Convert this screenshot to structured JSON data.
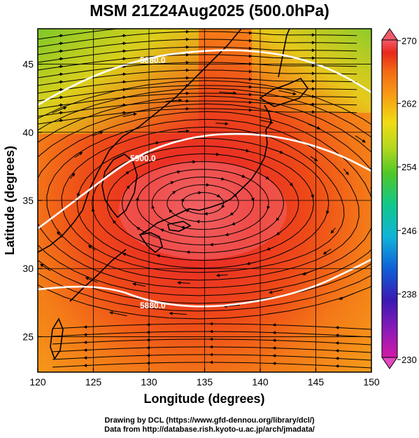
{
  "title": "MSM 21Z24Aug2025 (500.0hPa)",
  "axes": {
    "xlabel": "Longitude (degrees)",
    "ylabel": "Latitude  (degrees)",
    "x_ticks": [
      "120",
      "125",
      "130",
      "135",
      "140",
      "145",
      "150"
    ],
    "y_ticks": [
      "25",
      "30",
      "35",
      "40",
      "45"
    ],
    "x_range": [
      120,
      150
    ],
    "y_range": [
      22.4,
      47.6
    ]
  },
  "colorbar": {
    "labels": [
      "270",
      "262",
      "254",
      "246",
      "238",
      "230"
    ],
    "min": 230,
    "max": 270,
    "palette": [
      "#d21aa8",
      "#3a1ab4",
      "#1060d8",
      "#10b4d8",
      "#10c88c",
      "#50c828",
      "#b4d81e",
      "#f0dc14",
      "#f8a014",
      "#f46a14",
      "#e8281a",
      "#f25a6a"
    ]
  },
  "contours": {
    "labels": [
      "5880.0",
      "5900.0",
      "5880.0"
    ]
  },
  "credits": {
    "line1": "Drawing by DCL (https://www.gfd-dennou.org/library/dcl/)",
    "line2": "Data from http://database.rish.kyoto-u.ac.jp/arch/jmadata/"
  }
}
